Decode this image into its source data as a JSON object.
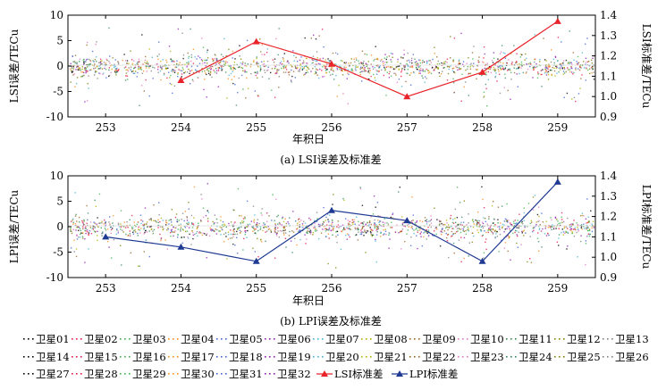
{
  "chart_data": [
    {
      "type": "line",
      "caption": "(a) LSI误差及标准差",
      "xlabel": "年积日",
      "ylabel_left": "LSI误差/TECu",
      "ylabel_right": "LSI标准差/TECu",
      "xlim": [
        252.5,
        259.5
      ],
      "ylim_left": [
        -10,
        10
      ],
      "ylim_right": [
        0.9,
        1.4
      ],
      "x_ticks": [
        253,
        254,
        255,
        256,
        257,
        258,
        259
      ],
      "y_ticks_left": [
        -10,
        -5,
        0,
        5,
        10
      ],
      "y_ticks_right": [
        0.9,
        1.0,
        1.1,
        1.2,
        1.3,
        1.4
      ],
      "std_series": {
        "name": "LSI标准差",
        "color": "#e8232a",
        "x": [
          254,
          255,
          256,
          257,
          258,
          259
        ],
        "values": [
          1.08,
          1.27,
          1.16,
          1.0,
          1.12,
          1.37
        ]
      },
      "error_scatter": "卫星01–卫星32 residual error scatter, mostly within ±2 TECu, spikes up to ±8 TECu"
    },
    {
      "type": "line",
      "caption": "(b) LPI误差及标准差",
      "xlabel": "年积日",
      "ylabel_left": "LPI误差/TECu",
      "ylabel_right": "LPI标准差/TECu",
      "xlim": [
        252.5,
        259.5
      ],
      "ylim_left": [
        -10,
        10
      ],
      "ylim_right": [
        0.9,
        1.4
      ],
      "x_ticks": [
        253,
        254,
        255,
        256,
        257,
        258,
        259
      ],
      "y_ticks_left": [
        -10,
        -5,
        0,
        5,
        10
      ],
      "y_ticks_right": [
        0.9,
        1.0,
        1.1,
        1.2,
        1.3,
        1.4
      ],
      "std_series": {
        "name": "LPI标准差",
        "color": "#1f3a93",
        "x": [
          253,
          254,
          255,
          256,
          257,
          258,
          259
        ],
        "values": [
          1.1,
          1.05,
          0.98,
          1.23,
          1.18,
          0.98,
          1.37
        ]
      },
      "error_scatter": "卫星01–卫星32 residual error scatter, mostly within ±2 TECu, spikes up to ±8 TECu"
    }
  ],
  "legend": {
    "satellites": [
      "卫星01",
      "卫星02",
      "卫星03",
      "卫星04",
      "卫星05",
      "卫星06",
      "卫星07",
      "卫星08",
      "卫星09",
      "卫星10",
      "卫星11",
      "卫星12",
      "卫星13",
      "卫星14",
      "卫星15",
      "卫星16",
      "卫星17",
      "卫星18",
      "卫星19",
      "卫星20",
      "卫星21",
      "卫星22",
      "卫星23",
      "卫星24",
      "卫星25",
      "卫星26",
      "卫星27",
      "卫星28",
      "卫星29",
      "卫星30",
      "卫星31",
      "卫星32"
    ],
    "lsi_label": "LSI标准差",
    "lpi_label": "LPI标准差",
    "scatter_colors": [
      "#000000",
      "#e6194b",
      "#3cb44b",
      "#ff8c1a",
      "#4363d8",
      "#911eb4",
      "#42b4d4",
      "#b0b000",
      "#9a6324",
      "#e377c2",
      "#2e8b57",
      "#808000",
      "#7f7f7f"
    ]
  }
}
